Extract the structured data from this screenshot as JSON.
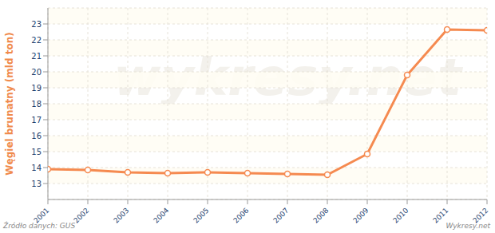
{
  "chart_data": {
    "type": "line",
    "ylabel": "Węgiel brunatny (mld ton)",
    "source": "Źródło danych: GUS",
    "credit": "Wykresy.net",
    "watermark": "wykresy.net",
    "x": [
      2001,
      2002,
      2003,
      2004,
      2005,
      2006,
      2007,
      2008,
      2009,
      2010,
      2011,
      2012
    ],
    "values": [
      13.9,
      13.85,
      13.7,
      13.65,
      13.7,
      13.65,
      13.6,
      13.55,
      14.85,
      19.8,
      22.65,
      22.6
    ],
    "color": "#f58a50",
    "marker": "circle",
    "xlim": [
      2001,
      2012
    ],
    "xticks": [
      2001,
      2002,
      2003,
      2004,
      2005,
      2006,
      2007,
      2008,
      2009,
      2010,
      2011,
      2012
    ],
    "ylim": [
      12,
      24
    ],
    "yticks": [
      13,
      14,
      15,
      16,
      17,
      18,
      19,
      20,
      21,
      22,
      23
    ],
    "grid": true
  }
}
